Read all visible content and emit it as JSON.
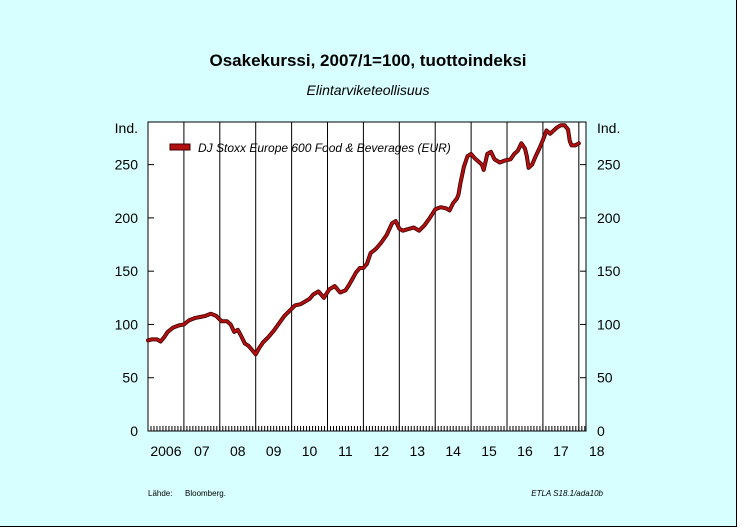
{
  "colors": {
    "background": "#d8ffff",
    "plot": "#ffffff",
    "series": "#b01010",
    "series_shadow": "#400000"
  },
  "chart_data": {
    "type": "line",
    "title": "Osakekurssi, 2007/1=100, tuottoindeksi",
    "subtitle": "Elintarviketeollisuus",
    "ylabel_left": "Ind.",
    "ylabel_right": "Ind.",
    "ylim": [
      0,
      290
    ],
    "yticks": [
      0,
      50,
      100,
      150,
      200,
      250
    ],
    "xlim": [
      2006.0,
      2018.2
    ],
    "xtick_labels": [
      {
        "x": 2006,
        "label": "2006"
      },
      {
        "x": 2007,
        "label": "07"
      },
      {
        "x": 2008,
        "label": "08"
      },
      {
        "x": 2009,
        "label": "09"
      },
      {
        "x": 2010,
        "label": "10"
      },
      {
        "x": 2011,
        "label": "11"
      },
      {
        "x": 2012,
        "label": "12"
      },
      {
        "x": 2013,
        "label": "13"
      },
      {
        "x": 2014,
        "label": "14"
      },
      {
        "x": 2015,
        "label": "15"
      },
      {
        "x": 2016,
        "label": "16"
      },
      {
        "x": 2017,
        "label": "17"
      },
      {
        "x": 2018,
        "label": "18"
      }
    ],
    "grid": "vertical",
    "legend_position": "top-left",
    "series": [
      {
        "name": "DJ Stoxx Europe 600 Food & Beverages (EUR)",
        "x": [
          2006.0,
          2006.1,
          2006.25,
          2006.35,
          2006.45,
          2006.55,
          2006.7,
          2006.85,
          2007.0,
          2007.15,
          2007.3,
          2007.45,
          2007.6,
          2007.75,
          2007.9,
          2008.05,
          2008.2,
          2008.3,
          2008.4,
          2008.5,
          2008.6,
          2008.7,
          2008.8,
          2008.9,
          2009.0,
          2009.1,
          2009.2,
          2009.35,
          2009.5,
          2009.65,
          2009.8,
          2009.95,
          2010.1,
          2010.25,
          2010.4,
          2010.5,
          2010.6,
          2010.75,
          2010.9,
          2011.05,
          2011.2,
          2011.35,
          2011.5,
          2011.6,
          2011.7,
          2011.8,
          2011.9,
          2012.0,
          2012.1,
          2012.2,
          2012.35,
          2012.5,
          2012.65,
          2012.8,
          2012.9,
          2013.0,
          2013.1,
          2013.2,
          2013.3,
          2013.4,
          2013.55,
          2013.7,
          2013.85,
          2014.0,
          2014.15,
          2014.3,
          2014.4,
          2014.5,
          2014.6,
          2014.65,
          2014.7,
          2014.8,
          2014.9,
          2015.0,
          2015.1,
          2015.2,
          2015.3,
          2015.35,
          2015.45,
          2015.55,
          2015.65,
          2015.8,
          2015.95,
          2016.1,
          2016.2,
          2016.3,
          2016.4,
          2016.5,
          2016.55,
          2016.6,
          2016.7,
          2016.8,
          2016.9,
          2017.0,
          2017.1,
          2017.2,
          2017.3,
          2017.4,
          2017.5,
          2017.6,
          2017.7,
          2017.75,
          2017.8,
          2017.9,
          2018.0
        ],
        "y": [
          85,
          86,
          86,
          84,
          88,
          93,
          97,
          99,
          100,
          104,
          106,
          107,
          108,
          110,
          108,
          103,
          103,
          100,
          93,
          95,
          89,
          82,
          80,
          76,
          72,
          78,
          83,
          88,
          94,
          101,
          108,
          113,
          118,
          119,
          122,
          124,
          128,
          131,
          125,
          133,
          136,
          130,
          132,
          137,
          143,
          149,
          153,
          153,
          157,
          167,
          171,
          177,
          184,
          195,
          197,
          190,
          188,
          189,
          190,
          191,
          188,
          193,
          200,
          208,
          210,
          209,
          207,
          214,
          218,
          222,
          232,
          248,
          258,
          260,
          256,
          253,
          250,
          245,
          260,
          262,
          255,
          252,
          254,
          255,
          260,
          263,
          270,
          265,
          258,
          247,
          250,
          258,
          265,
          273,
          282,
          279,
          282,
          285,
          287,
          287,
          283,
          272,
          268,
          268,
          270
        ]
      }
    ]
  },
  "footer": {
    "source_label": "Lähde:",
    "source": "Bloomberg.",
    "code": "ETLA S18.1/ada10b"
  }
}
